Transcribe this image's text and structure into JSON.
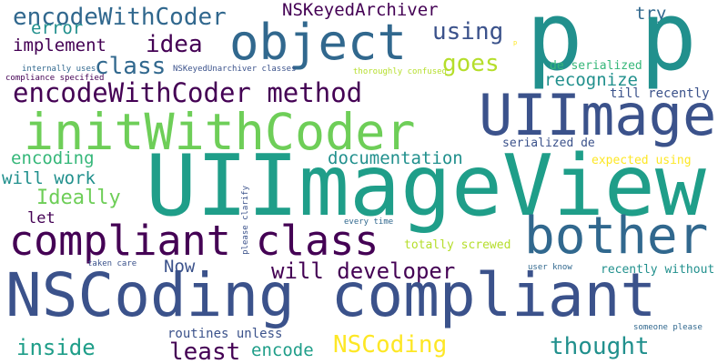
{
  "palette": {
    "dark_purple": "#440154",
    "indigo": "#3b528b",
    "slate_blue": "#31688e",
    "teal": "#21908d",
    "sea_green": "#1f9e89",
    "green": "#35b779",
    "lime": "#6ece58",
    "yellow_green": "#b5de2b",
    "yellow": "#fde725"
  },
  "words": [
    "encodeWithCoder",
    "NSKeyedArchiver",
    "try",
    "error",
    "p p",
    "using",
    "implement",
    "idea",
    "object",
    "class",
    "goes",
    "internally uses",
    "NSKeyedUnarchiver classes",
    "thoroughly confused",
    "de serialized",
    "compliance specified",
    "recognize",
    "encodeWithCoder method",
    "till recently",
    "initWithCoder",
    "UIImage",
    "serialized de",
    "encoding",
    "documentation",
    "expected using",
    "will work",
    "Ideally",
    "please clarify",
    "UIImageView",
    "let",
    "every time",
    "compliant class",
    "bother",
    "totally screwed",
    "taken care",
    "Now",
    "user know",
    "recently without",
    "will developer",
    "NSCoding compliant",
    "someone please",
    "inside",
    "routines unless",
    "NSCoding",
    "thought",
    "least",
    "encode",
    "p"
  ]
}
